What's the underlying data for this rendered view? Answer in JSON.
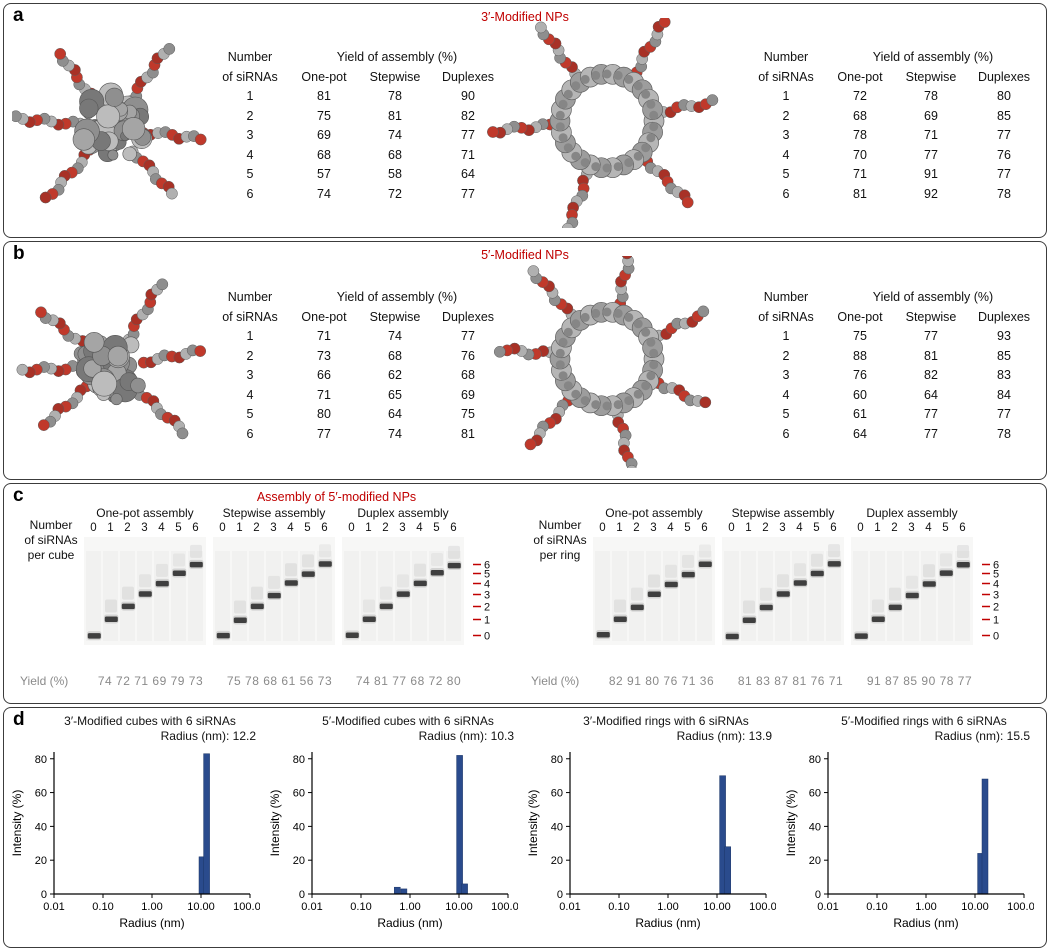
{
  "colors": {
    "accent_red": "#c00000",
    "bar_blue": "#2a4b8d",
    "structure_red": "#c0392b",
    "structure_gray": "#9a9a9a",
    "gel_band": "#1f1f1f"
  },
  "table_header": {
    "rowheader_line1": "Number",
    "rowheader_line2": "of siRNAs",
    "span_header": "Yield of assembly (%)",
    "columns": [
      "One-pot",
      "Stepwise",
      "Duplexes"
    ]
  },
  "panel_a": {
    "label": "a",
    "title": "3′-Modified NPs",
    "cube_rows": [
      [
        "1",
        "81",
        "78",
        "90"
      ],
      [
        "2",
        "75",
        "81",
        "82"
      ],
      [
        "3",
        "69",
        "74",
        "77"
      ],
      [
        "4",
        "68",
        "68",
        "71"
      ],
      [
        "5",
        "57",
        "58",
        "64"
      ],
      [
        "6",
        "74",
        "72",
        "77"
      ]
    ],
    "ring_rows": [
      [
        "1",
        "72",
        "78",
        "80"
      ],
      [
        "2",
        "68",
        "69",
        "85"
      ],
      [
        "3",
        "78",
        "71",
        "77"
      ],
      [
        "4",
        "70",
        "77",
        "76"
      ],
      [
        "5",
        "71",
        "91",
        "77"
      ],
      [
        "6",
        "81",
        "92",
        "78"
      ]
    ]
  },
  "panel_b": {
    "label": "b",
    "title": "5′-Modified NPs",
    "cube_rows": [
      [
        "1",
        "71",
        "74",
        "77"
      ],
      [
        "2",
        "73",
        "68",
        "76"
      ],
      [
        "3",
        "66",
        "62",
        "68"
      ],
      [
        "4",
        "71",
        "65",
        "69"
      ],
      [
        "5",
        "80",
        "64",
        "75"
      ],
      [
        "6",
        "77",
        "74",
        "81"
      ]
    ],
    "ring_rows": [
      [
        "1",
        "75",
        "77",
        "93"
      ],
      [
        "2",
        "88",
        "81",
        "85"
      ],
      [
        "3",
        "76",
        "82",
        "83"
      ],
      [
        "4",
        "60",
        "64",
        "84"
      ],
      [
        "5",
        "61",
        "77",
        "77"
      ],
      [
        "6",
        "64",
        "77",
        "78"
      ]
    ]
  },
  "panel_c": {
    "label": "c",
    "title": "Assembly of 5′-modified NPs",
    "lane_labels": [
      "0",
      "1",
      "2",
      "3",
      "4",
      "5",
      "6"
    ],
    "ladder_labels": [
      "6",
      "5",
      "4",
      "3",
      "2",
      "1",
      "0"
    ],
    "groups": [
      {
        "axis_label": [
          "Number",
          "of siRNAs",
          "per cube"
        ],
        "yield_label": "Yield (%)",
        "gels": [
          {
            "title": "One-pot assembly",
            "yields": "74 72 71 69 79 73"
          },
          {
            "title": "Stepwise assembly",
            "yields": "75 78 68 61 56 73"
          },
          {
            "title": "Duplex assembly",
            "yields": "74 81 77 68 72 80"
          }
        ]
      },
      {
        "axis_label": [
          "Number",
          "of siRNAs",
          "per ring"
        ],
        "yield_label": "Yield (%)",
        "gels": [
          {
            "title": "One-pot assembly",
            "yields": "82 91 80 76 71 36"
          },
          {
            "title": "Stepwise assembly",
            "yields": "81 83 87 81 76 71"
          },
          {
            "title": "Duplex assembly",
            "yields": "91 87 85 90 78 77"
          }
        ]
      }
    ]
  },
  "panel_d": {
    "label": "d"
  },
  "chart_data": [
    {
      "type": "bar",
      "title": "3′-Modified cubes with 6 siRNAs",
      "radius_label": "Radius (nm): 12.2",
      "xlabel": "Radius (nm)",
      "ylabel": "Intensity (%)",
      "x_ticks": [
        "0.01",
        "0.10",
        "1.00",
        "10.00",
        "100.00"
      ],
      "y_ticks": [
        0,
        20,
        40,
        60,
        80
      ],
      "xlog_range": [
        0.01,
        100
      ],
      "ylim": [
        0,
        84
      ],
      "bars": [
        {
          "radius": 10.5,
          "intensity": 22
        },
        {
          "radius": 13.0,
          "intensity": 83
        }
      ]
    },
    {
      "type": "bar",
      "title": "5′-Modified cubes with 6 siRNAs",
      "radius_label": "Radius (nm): 10.3",
      "xlabel": "Radius (nm)",
      "ylabel": "Intensity (%)",
      "x_ticks": [
        "0.01",
        "0.10",
        "1.00",
        "10.00",
        "100.00"
      ],
      "y_ticks": [
        0,
        20,
        40,
        60,
        80
      ],
      "xlog_range": [
        0.01,
        100
      ],
      "ylim": [
        0,
        84
      ],
      "bars": [
        {
          "radius": 0.55,
          "intensity": 4
        },
        {
          "radius": 0.75,
          "intensity": 3
        },
        {
          "radius": 10.3,
          "intensity": 82
        },
        {
          "radius": 13.0,
          "intensity": 6
        }
      ]
    },
    {
      "type": "bar",
      "title": "3′-Modified rings with 6 siRNAs",
      "radius_label": "Radius (nm): 13.9",
      "xlabel": "Radius (nm)",
      "ylabel": "Intensity (%)",
      "x_ticks": [
        "0.01",
        "0.10",
        "1.00",
        "10.00",
        "100.00"
      ],
      "y_ticks": [
        0,
        20,
        40,
        60,
        80
      ],
      "xlog_range": [
        0.01,
        100
      ],
      "ylim": [
        0,
        84
      ],
      "bars": [
        {
          "radius": 13.0,
          "intensity": 70
        },
        {
          "radius": 16.5,
          "intensity": 28
        }
      ]
    },
    {
      "type": "bar",
      "title": "5′-Modified rings with 6 siRNAs",
      "radius_label": "Radius (nm): 15.5",
      "xlabel": "Radius (nm)",
      "ylabel": "Intensity (%)",
      "x_ticks": [
        "0.01",
        "0.10",
        "1.00",
        "10.00",
        "100.00"
      ],
      "y_ticks": [
        0,
        20,
        40,
        60,
        80
      ],
      "xlog_range": [
        0.01,
        100
      ],
      "ylim": [
        0,
        84
      ],
      "bars": [
        {
          "radius": 13.0,
          "intensity": 24
        },
        {
          "radius": 16.0,
          "intensity": 68
        }
      ]
    }
  ]
}
